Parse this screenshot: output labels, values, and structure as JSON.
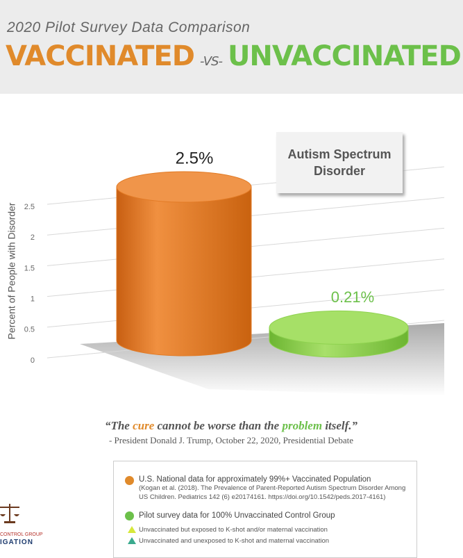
{
  "header": {
    "subtitle": "2020 Pilot Survey Data Comparison",
    "left": "VACCINATED",
    "middle": "-VS-",
    "right": "UNVACCINATED"
  },
  "chart_data": {
    "type": "cylinder",
    "title": "Autism Spectrum Disorder",
    "y_label": "Percent of People with Disorder",
    "categories": [
      null,
      null
    ],
    "values": [
      2.5,
      0.21
    ],
    "value_labels": [
      "2.5%",
      "0.21%"
    ],
    "colors": [
      "#e27a24",
      "#8ed24f"
    ],
    "label_colors": [
      "#222222",
      "#6cc04a"
    ],
    "ylim": [
      0,
      2.5
    ],
    "yticks": [
      0,
      0.5,
      1,
      1.5,
      2,
      2.5
    ],
    "grid": true
  },
  "quote": {
    "parts": [
      "“The ",
      "cure",
      " cannot be worse than the ",
      "problem",
      " itself.”"
    ],
    "attribution": "- President Donald J. Trump, October 22, 2020, Presidential Debate"
  },
  "legend": {
    "items": [
      {
        "text": "U.S. National data for approximately 99%+ Vaccinated Population",
        "note": "(Kogan et al. (2018). The Prevalence of Parent-Reported Autism Spectrum Disorder Among US Children. Pediatrics 142 (6) e20174161. https://doi.org/10.1542/peds.2017-4161)"
      },
      {
        "text": "Pilot survey data for 100% Unvaccinated Control Group"
      }
    ],
    "subitems": [
      "Unvaccinated but exposed to K-shot and/or maternal vaccination",
      "Unvaccinated and unexposed to K-shot and maternal vaccination"
    ]
  },
  "logo": {
    "lines": [
      "CONTROL GROUP",
      "IGATION"
    ]
  }
}
